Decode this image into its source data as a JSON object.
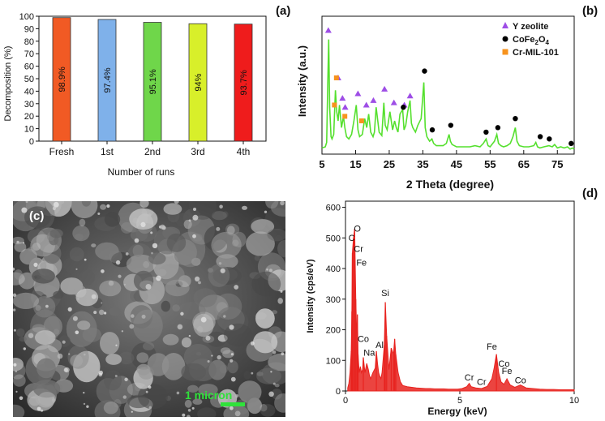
{
  "chart_data": [
    {
      "panel": "(a)",
      "type": "bar",
      "categories": [
        "Fresh",
        "1st",
        "2nd",
        "3rd",
        "4th"
      ],
      "values": [
        98.9,
        97.4,
        95.1,
        94,
        93.7
      ],
      "value_labels": [
        "98.9%",
        "97.4%",
        "95.1%",
        "94%",
        "93.7%"
      ],
      "colors": [
        "#f15a24",
        "#7fb1ea",
        "#6fd64a",
        "#d8ef2a",
        "#ef1c1c"
      ],
      "xlabel": "Number of runs",
      "ylabel": "Decomposition (%)",
      "ylim": [
        0,
        100
      ],
      "yticks": [
        0,
        10,
        20,
        30,
        40,
        50,
        60,
        70,
        80,
        90,
        100
      ]
    },
    {
      "panel": "(b)",
      "type": "line",
      "xlabel": "2 Theta (degree)",
      "ylabel": "Intensity (a.u.)",
      "xlim": [
        5,
        80
      ],
      "xticks": [
        5,
        15,
        25,
        35,
        45,
        55,
        65,
        75
      ],
      "series": [
        {
          "color": "#55e02e",
          "x": [
            5,
            6,
            6.4,
            6.7,
            7,
            7.3,
            7.7,
            8,
            8.5,
            9,
            9.4,
            9.8,
            10.2,
            10.8,
            11.4,
            11.8,
            12.3,
            13,
            13.8,
            14.5,
            15.2,
            15.7,
            16.2,
            17,
            17.7,
            18.3,
            18.9,
            19.5,
            20.2,
            20.6,
            21.1,
            22,
            22.8,
            23.4,
            23.8,
            24.4,
            25.2,
            26,
            26.6,
            27.1,
            27.6,
            28.2,
            29,
            29.4,
            29.9,
            30.5,
            31.2,
            31.6,
            32,
            32.8,
            33.5,
            34.5,
            35.3,
            35.7,
            36.2,
            37,
            37.7,
            38.2,
            39,
            40,
            41,
            42,
            42.8,
            43.2,
            43.7,
            45,
            47,
            49,
            50.5,
            52,
            53,
            53.8,
            54.4,
            55,
            56.3,
            57,
            57.5,
            58.2,
            59,
            60,
            61,
            61.8,
            62.5,
            63,
            63.7,
            65,
            66.5,
            68,
            68.6,
            69.1,
            69.8,
            71,
            72.5,
            73.5,
            74.2,
            75,
            76,
            77,
            78,
            78.8,
            79.5,
            80
          ],
          "y": [
            0.04,
            0.05,
            0.09,
            0.55,
            1.0,
            0.4,
            0.14,
            0.12,
            0.16,
            0.55,
            0.36,
            0.28,
            0.42,
            0.22,
            0.32,
            0.22,
            0.14,
            0.12,
            0.16,
            0.28,
            0.42,
            0.2,
            0.14,
            0.16,
            0.3,
            0.22,
            0.34,
            0.18,
            0.14,
            0.18,
            0.4,
            0.18,
            0.15,
            0.44,
            0.24,
            0.2,
            0.36,
            0.2,
            0.28,
            0.22,
            0.18,
            0.34,
            0.38,
            0.2,
            0.24,
            0.36,
            0.46,
            0.26,
            0.22,
            0.18,
            0.24,
            0.3,
            0.62,
            0.22,
            0.14,
            0.1,
            0.12,
            0.08,
            0.06,
            0.06,
            0.06,
            0.08,
            0.16,
            0.1,
            0.07,
            0.05,
            0.05,
            0.05,
            0.06,
            0.05,
            0.08,
            0.12,
            0.06,
            0.05,
            0.1,
            0.16,
            0.08,
            0.06,
            0.05,
            0.06,
            0.08,
            0.14,
            0.22,
            0.1,
            0.06,
            0.05,
            0.05,
            0.06,
            0.09,
            0.05,
            0.04,
            0.05,
            0.06,
            0.05,
            0.07,
            0.04,
            0.05,
            0.04,
            0.05,
            0.03,
            0.04,
            0.03
          ]
        }
      ],
      "legend": {
        "placement": "top-right",
        "entries": [
          {
            "label": "Y zeolite",
            "marker": "triangle",
            "color": "#9e4ee6"
          },
          {
            "label": "CoFe2O4",
            "marker": "circle",
            "color": "#000000"
          },
          {
            "label": "Cr-MIL-101",
            "marker": "square",
            "color": "#f7931e"
          }
        ]
      },
      "markers": {
        "triangle": [
          [
            6.9,
            1.08
          ],
          [
            9.8,
            0.66
          ],
          [
            11.1,
            0.48
          ],
          [
            11.9,
            0.4
          ],
          [
            15.7,
            0.52
          ],
          [
            18.2,
            0.42
          ],
          [
            20.3,
            0.46
          ],
          [
            23.6,
            0.56
          ],
          [
            26.4,
            0.44
          ],
          [
            29.5,
            0.42
          ],
          [
            31.2,
            0.5
          ]
        ],
        "circle": [
          [
            29.2,
            0.4
          ],
          [
            35.5,
            0.72
          ],
          [
            37.8,
            0.2
          ],
          [
            43.3,
            0.24
          ],
          [
            53.8,
            0.18
          ],
          [
            57.3,
            0.22
          ],
          [
            62.5,
            0.3
          ],
          [
            69.9,
            0.14
          ],
          [
            72.6,
            0.12
          ],
          [
            79.1,
            0.08
          ]
        ],
        "square": [
          [
            8.7,
            0.42
          ],
          [
            9.3,
            0.66
          ],
          [
            11.8,
            0.32
          ],
          [
            16.8,
            0.28
          ]
        ]
      }
    },
    {
      "panel": "(d)",
      "type": "bar",
      "xlabel": "Energy (keV)",
      "ylabel": "Intensity (cps/eV)",
      "xlim": [
        0,
        10
      ],
      "ylim": [
        0,
        620
      ],
      "xticks": [
        0,
        5,
        10
      ],
      "yticks": [
        0,
        100,
        200,
        300,
        400,
        500,
        600
      ],
      "color": "#e8231f",
      "spectrum": {
        "x": [
          0.1,
          0.15,
          0.2,
          0.25,
          0.28,
          0.3,
          0.35,
          0.4,
          0.45,
          0.5,
          0.52,
          0.55,
          0.6,
          0.65,
          0.7,
          0.75,
          0.78,
          0.85,
          0.93,
          1.0,
          1.05,
          1.1,
          1.2,
          1.3,
          1.35,
          1.4,
          1.45,
          1.49,
          1.55,
          1.6,
          1.7,
          1.74,
          1.8,
          1.9,
          2.0,
          2.1,
          2.15,
          2.2,
          2.3,
          2.4,
          2.5,
          2.7,
          2.9,
          3.1,
          3.3,
          3.5,
          3.7,
          3.9,
          4.1,
          4.3,
          4.5,
          4.7,
          4.9,
          5.1,
          5.3,
          5.41,
          5.5,
          5.7,
          5.95,
          6.2,
          6.4,
          6.5,
          6.6,
          6.7,
          6.8,
          6.93,
          7.06,
          7.2,
          7.4,
          7.65,
          7.9,
          8.2,
          8.5,
          8.8,
          9.1,
          9.4,
          9.7,
          10.0
        ],
        "y": [
          10,
          25,
          60,
          130,
          260,
          450,
          500,
          530,
          300,
          160,
          250,
          120,
          60,
          80,
          60,
          70,
          110,
          60,
          90,
          70,
          50,
          40,
          60,
          75,
          130,
          90,
          60,
          50,
          40,
          60,
          150,
          290,
          180,
          70,
          140,
          120,
          170,
          120,
          60,
          30,
          18,
          14,
          12,
          10,
          9,
          8,
          8,
          7,
          7,
          7,
          6,
          6,
          6,
          8,
          14,
          25,
          14,
          10,
          8,
          15,
          40,
          75,
          120,
          60,
          30,
          22,
          40,
          20,
          12,
          20,
          10,
          8,
          6,
          5,
          5,
          4,
          4,
          4
        ]
      },
      "annotations": [
        {
          "text": "O",
          "x": 0.52,
          "y": 520
        },
        {
          "text": "C",
          "x": 0.27,
          "y": 490
        },
        {
          "text": "Cr",
          "x": 0.57,
          "y": 455
        },
        {
          "text": "Fe",
          "x": 0.7,
          "y": 410
        },
        {
          "text": "Si",
          "x": 1.74,
          "y": 310
        },
        {
          "text": "Co",
          "x": 0.78,
          "y": 160
        },
        {
          "text": "Na",
          "x": 1.04,
          "y": 115
        },
        {
          "text": "Al",
          "x": 1.49,
          "y": 140
        },
        {
          "text": "Cr",
          "x": 5.41,
          "y": 35
        },
        {
          "text": "Cr",
          "x": 5.95,
          "y": 20
        },
        {
          "text": "Fe",
          "x": 6.4,
          "y": 135
        },
        {
          "text": "Co",
          "x": 6.93,
          "y": 80
        },
        {
          "text": "Fe",
          "x": 7.06,
          "y": 55
        },
        {
          "text": "Co",
          "x": 7.65,
          "y": 25
        }
      ]
    }
  ],
  "panels": {
    "a": "(a)",
    "b": "(b)",
    "c": "(c)",
    "d": "(d)"
  },
  "sem": {
    "scale_label": "1 micron",
    "scale_color": "#2fe23a"
  }
}
